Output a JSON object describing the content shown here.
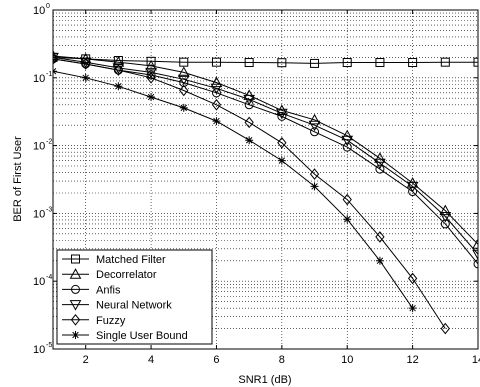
{
  "chart_data": {
    "type": "line",
    "xlabel": "SNR1 (dB)",
    "ylabel": "BER of First User",
    "xlim": [
      1,
      14
    ],
    "ylim": [
      1e-05,
      1
    ],
    "yscale": "log",
    "grid": true,
    "legend_position": "bottom-left",
    "x_ticks": [
      2,
      4,
      6,
      8,
      10,
      12,
      14
    ],
    "x_tick_labels": [
      "2",
      "4",
      "6",
      "8",
      "10",
      "12",
      "14"
    ],
    "y_ticks": [
      {
        "value": 1e-05,
        "base": "10",
        "exp": "-5"
      },
      {
        "value": 0.0001,
        "base": "10",
        "exp": "-4"
      },
      {
        "value": 0.001,
        "base": "10",
        "exp": "-3"
      },
      {
        "value": 0.01,
        "base": "10",
        "exp": "-2"
      },
      {
        "value": 0.1,
        "base": "10",
        "exp": "-1"
      },
      {
        "value": 1,
        "base": "10",
        "exp": "0"
      }
    ],
    "series": [
      {
        "name": "Matched Filter",
        "marker": "square",
        "x": [
          1,
          2,
          3,
          4,
          5,
          6,
          7,
          8,
          9,
          10,
          11,
          12,
          13,
          14
        ],
        "y": [
          0.2,
          0.19,
          0.18,
          0.175,
          0.17,
          0.17,
          0.168,
          0.167,
          0.163,
          0.168,
          0.168,
          0.168,
          0.17,
          0.17
        ]
      },
      {
        "name": "Decorrelator",
        "marker": "triangle-up",
        "x": [
          1,
          2,
          3,
          4,
          5,
          6,
          7,
          8,
          9,
          10,
          11,
          12,
          13,
          14
        ],
        "y": [
          0.21,
          0.19,
          0.17,
          0.15,
          0.12,
          0.085,
          0.055,
          0.033,
          0.024,
          0.014,
          0.0065,
          0.0028,
          0.0011,
          0.00035
        ]
      },
      {
        "name": "Anfis",
        "marker": "circle",
        "x": [
          1,
          2,
          3,
          4,
          5,
          6,
          7,
          8,
          9,
          10,
          11,
          12,
          13,
          14
        ],
        "y": [
          0.19,
          0.16,
          0.13,
          0.11,
          0.085,
          0.06,
          0.04,
          0.027,
          0.016,
          0.0095,
          0.0045,
          0.0021,
          0.0007,
          0.00018
        ]
      },
      {
        "name": "Neural Network",
        "marker": "triangle-down",
        "x": [
          1,
          2,
          3,
          4,
          5,
          6,
          7,
          8,
          9,
          10,
          11,
          12,
          13,
          14
        ],
        "y": [
          0.2,
          0.17,
          0.14,
          0.12,
          0.095,
          0.07,
          0.048,
          0.03,
          0.02,
          0.012,
          0.0055,
          0.0025,
          0.0009,
          0.00025
        ]
      },
      {
        "name": "Fuzzy",
        "marker": "diamond",
        "x": [
          1,
          2,
          3,
          4,
          5,
          6,
          7,
          8,
          9,
          10,
          11,
          12,
          13
        ],
        "y": [
          0.19,
          0.16,
          0.13,
          0.1,
          0.065,
          0.04,
          0.022,
          0.011,
          0.0038,
          0.0016,
          0.00045,
          0.00011,
          2e-05
        ]
      },
      {
        "name": "Single User Bound",
        "marker": "star",
        "x": [
          1,
          2,
          3,
          4,
          5,
          6,
          7,
          8,
          9,
          10,
          11,
          12
        ],
        "y": [
          0.125,
          0.1,
          0.075,
          0.052,
          0.036,
          0.023,
          0.012,
          0.006,
          0.0025,
          0.00082,
          0.0002,
          4e-05
        ]
      }
    ]
  }
}
